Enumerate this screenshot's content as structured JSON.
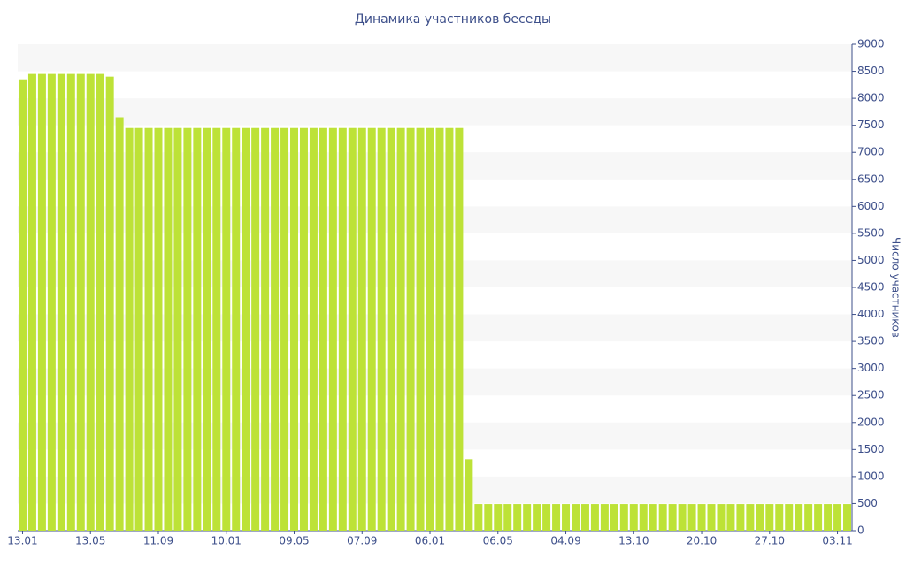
{
  "chart_data": {
    "type": "bar",
    "title": "Динамика участников беседы",
    "y_axis_label": "Число участников",
    "categories": [
      "13.01",
      null,
      null,
      null,
      null,
      null,
      null,
      "13.05",
      null,
      null,
      null,
      null,
      null,
      null,
      "11.09",
      null,
      null,
      null,
      null,
      null,
      null,
      "10.01",
      null,
      null,
      null,
      null,
      null,
      null,
      "09.05",
      null,
      null,
      null,
      null,
      null,
      null,
      "07.09",
      null,
      null,
      null,
      null,
      null,
      null,
      "06.01",
      null,
      null,
      null,
      null,
      null,
      null,
      "06.05",
      null,
      null,
      null,
      null,
      null,
      null,
      "04.09",
      null,
      null,
      null,
      null,
      null,
      null,
      "13.10",
      null,
      null,
      null,
      null,
      null,
      null,
      "20.10",
      null,
      null,
      null,
      null,
      null,
      null,
      "27.10",
      null,
      null,
      null,
      null,
      null,
      null,
      "03.11",
      null
    ],
    "values": [
      8350,
      8450,
      8450,
      8450,
      8450,
      8450,
      8450,
      8450,
      8450,
      8400,
      7650,
      7450,
      7450,
      7450,
      7450,
      7450,
      7450,
      7450,
      7450,
      7450,
      7450,
      7450,
      7450,
      7450,
      7450,
      7450,
      7450,
      7450,
      7450,
      7450,
      7450,
      7450,
      7450,
      7450,
      7450,
      7450,
      7450,
      7450,
      7450,
      7450,
      7450,
      7450,
      7450,
      7450,
      7450,
      7450,
      1320,
      490,
      490,
      490,
      490,
      490,
      490,
      490,
      490,
      490,
      490,
      490,
      490,
      490,
      490,
      490,
      490,
      490,
      490,
      490,
      490,
      490,
      490,
      490,
      490,
      490,
      490,
      490,
      490,
      490,
      490,
      490,
      490,
      490,
      490,
      490,
      490,
      490,
      490,
      490
    ],
    "color": "#bde237",
    "band_color": "#f7f7f7",
    "ylim": [
      0,
      9000
    ],
    "yticks": [
      0,
      500,
      1000,
      1500,
      2000,
      2500,
      3000,
      3500,
      4000,
      4500,
      5000,
      5500,
      6000,
      6500,
      7000,
      7500,
      8000,
      8500,
      9000
    ],
    "grid": true,
    "y_axis_side": "right"
  }
}
